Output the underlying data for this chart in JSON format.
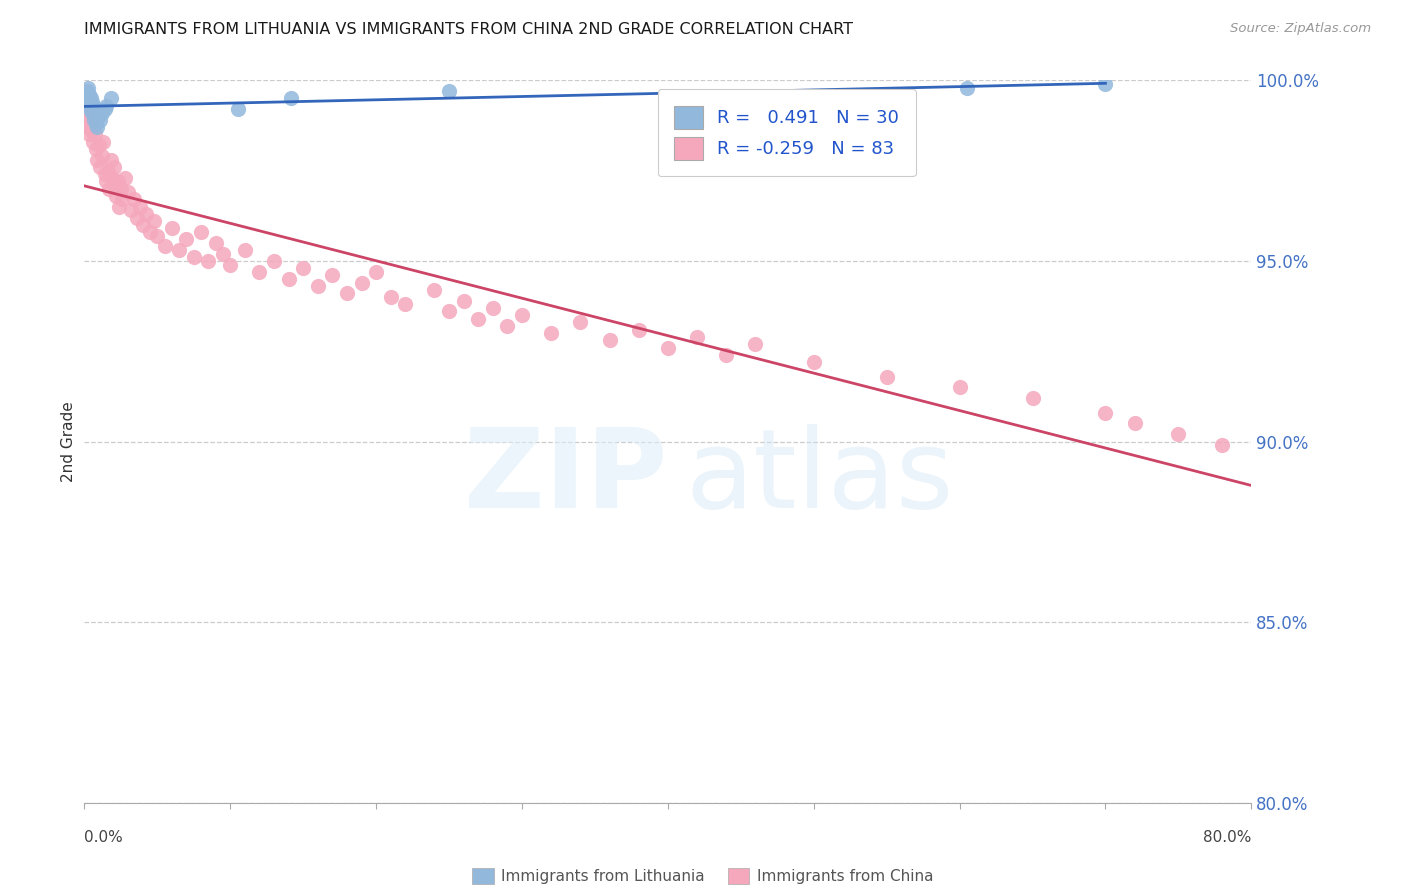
{
  "title": "IMMIGRANTS FROM LITHUANIA VS IMMIGRANTS FROM CHINA 2ND GRADE CORRELATION CHART",
  "source": "Source: ZipAtlas.com",
  "ylabel": "2nd Grade",
  "xlim": [
    0.0,
    80.0
  ],
  "ylim": [
    80.0,
    100.0
  ],
  "ytick_vals": [
    80.0,
    85.0,
    90.0,
    95.0,
    100.0
  ],
  "xtick_vals": [
    0.0,
    10.0,
    20.0,
    30.0,
    40.0,
    50.0,
    60.0,
    70.0,
    80.0
  ],
  "blue_R": "0.491",
  "blue_N": "30",
  "pink_R": "-0.259",
  "pink_N": "83",
  "blue_color": "#92b8dc",
  "pink_color": "#f5a8bc",
  "blue_line_color": "#3366bb",
  "pink_line_color": "#cc4466",
  "legend_label_blue": "Immigrants from Lithuania",
  "legend_label_pink": "Immigrants from China",
  "blue_scatter_x": [
    0.05,
    0.1,
    0.15,
    0.2,
    0.25,
    0.3,
    0.35,
    0.4,
    0.45,
    0.5,
    0.55,
    0.6,
    0.65,
    0.7,
    0.8,
    0.9,
    1.0,
    1.1,
    1.2,
    1.4,
    1.5,
    1.8,
    0.3,
    0.4,
    0.5,
    10.5,
    14.2,
    25.0,
    60.5,
    70.0
  ],
  "blue_scatter_y": [
    99.4,
    99.6,
    99.7,
    99.5,
    99.8,
    99.3,
    99.6,
    99.2,
    99.5,
    99.1,
    99.4,
    99.3,
    98.9,
    99.0,
    98.8,
    98.7,
    99.0,
    98.9,
    99.1,
    99.2,
    99.3,
    99.5,
    99.6,
    99.4,
    99.2,
    99.2,
    99.5,
    99.7,
    99.8,
    99.9
  ],
  "pink_scatter_x": [
    0.1,
    0.15,
    0.2,
    0.3,
    0.4,
    0.5,
    0.6,
    0.7,
    0.8,
    0.9,
    1.0,
    1.1,
    1.2,
    1.3,
    1.4,
    1.5,
    1.6,
    1.7,
    1.8,
    1.9,
    2.0,
    2.1,
    2.2,
    2.3,
    2.4,
    2.5,
    2.6,
    2.8,
    3.0,
    3.2,
    3.4,
    3.6,
    3.8,
    4.0,
    4.2,
    4.5,
    4.8,
    5.0,
    5.5,
    6.0,
    6.5,
    7.0,
    7.5,
    8.0,
    8.5,
    9.0,
    9.5,
    10.0,
    11.0,
    12.0,
    13.0,
    14.0,
    15.0,
    16.0,
    17.0,
    18.0,
    19.0,
    20.0,
    21.0,
    22.0,
    24.0,
    25.0,
    26.0,
    27.0,
    28.0,
    29.0,
    30.0,
    32.0,
    34.0,
    36.0,
    38.0,
    40.0,
    42.0,
    44.0,
    46.0,
    50.0,
    55.0,
    60.0,
    65.0,
    70.0,
    72.0,
    75.0,
    78.0
  ],
  "pink_scatter_y": [
    99.0,
    98.9,
    98.7,
    98.5,
    98.8,
    98.6,
    98.3,
    98.5,
    98.1,
    97.8,
    98.2,
    97.6,
    97.9,
    98.3,
    97.4,
    97.2,
    97.5,
    97.0,
    97.8,
    97.3,
    97.6,
    97.1,
    96.8,
    97.2,
    96.5,
    97.0,
    96.7,
    97.3,
    96.9,
    96.4,
    96.7,
    96.2,
    96.5,
    96.0,
    96.3,
    95.8,
    96.1,
    95.7,
    95.4,
    95.9,
    95.3,
    95.6,
    95.1,
    95.8,
    95.0,
    95.5,
    95.2,
    94.9,
    95.3,
    94.7,
    95.0,
    94.5,
    94.8,
    94.3,
    94.6,
    94.1,
    94.4,
    94.7,
    94.0,
    93.8,
    94.2,
    93.6,
    93.9,
    93.4,
    93.7,
    93.2,
    93.5,
    93.0,
    93.3,
    92.8,
    93.1,
    92.6,
    92.9,
    92.4,
    92.7,
    92.2,
    91.8,
    91.5,
    91.2,
    90.8,
    90.5,
    90.2,
    89.9
  ],
  "figwidth": 14.06,
  "figheight": 8.92,
  "dpi": 100
}
